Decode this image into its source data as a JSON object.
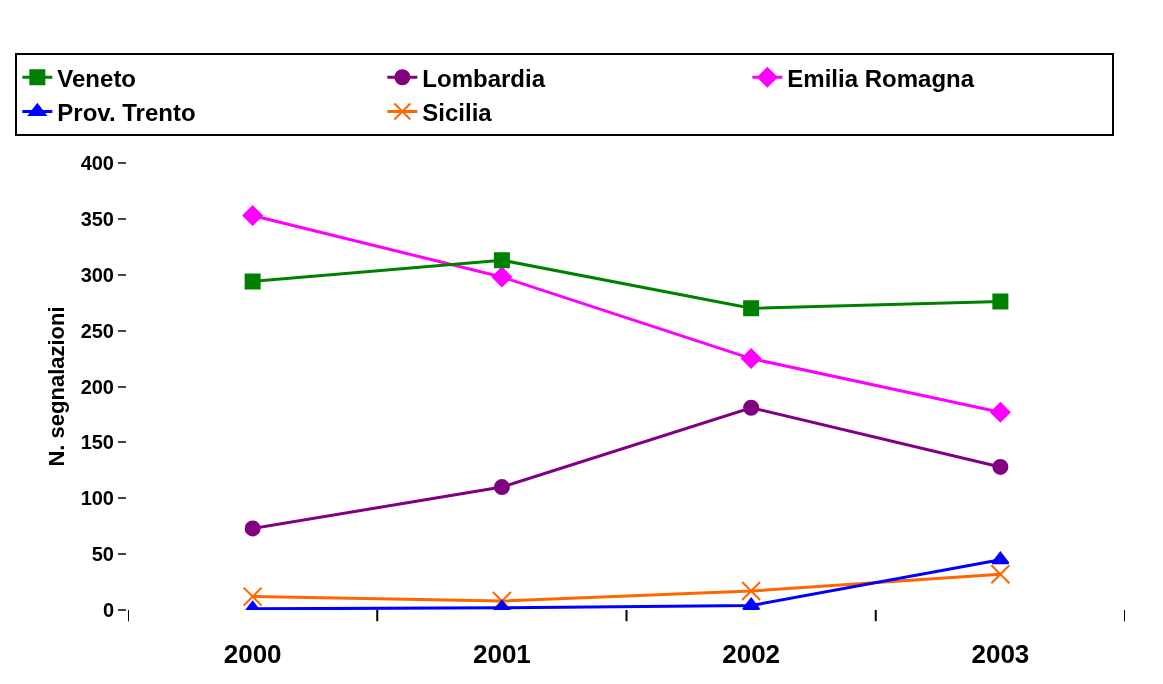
{
  "chart_data": {
    "type": "line",
    "ylabel": "N. segnalazioni",
    "categories": [
      "2000",
      "2001",
      "2002",
      "2003"
    ],
    "series": [
      {
        "name": "Veneto",
        "color": "#008000",
        "marker": "square",
        "values": [
          294,
          313,
          270,
          276
        ]
      },
      {
        "name": "Lombardia",
        "color": "#800080",
        "marker": "circle",
        "values": [
          73,
          110,
          181,
          128
        ]
      },
      {
        "name": "Emilia Romagna",
        "color": "#ff00ff",
        "marker": "diamond",
        "values": [
          353,
          298,
          225,
          177
        ]
      },
      {
        "name": "Prov. Trento",
        "color": "#0000ff",
        "marker": "triangle",
        "values": [
          1,
          2,
          4,
          45
        ]
      },
      {
        "name": "Sicilia",
        "color": "#ff6600",
        "marker": "cross",
        "values": [
          12,
          8,
          17,
          32
        ]
      }
    ],
    "ylim": [
      0,
      400
    ],
    "yticks": [
      0,
      50,
      100,
      150,
      200,
      250,
      300,
      350,
      400
    ],
    "grid": false,
    "legend": "top"
  }
}
